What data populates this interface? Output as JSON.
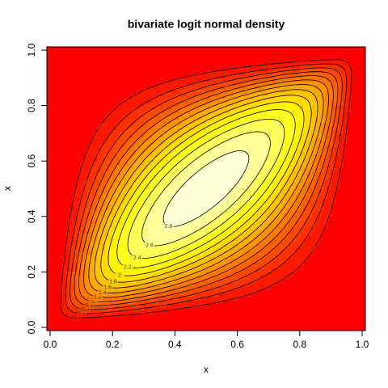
{
  "chart_data": {
    "type": "contour",
    "title": "bivariate logit normal density",
    "x_label": "x",
    "y_label": "x",
    "levels": [
      0.2,
      0.4,
      0.6,
      0.8,
      1,
      1.2,
      1.4,
      1.6,
      1.8,
      2,
      2.2,
      2.4,
      2.6,
      2.8
    ],
    "xlim": [
      0,
      1
    ],
    "ylim": [
      0,
      1
    ],
    "xticks": [
      {
        "value": 0,
        "label": "0.0"
      },
      0.2,
      0.4,
      0.6,
      0.8,
      {
        "value": 1,
        "label": "1.0"
      }
    ],
    "yticks": [
      {
        "value": 0,
        "label": "0.0"
      },
      0.2,
      0.4,
      0.6,
      0.8,
      {
        "value": 1,
        "label": "1.0"
      }
    ],
    "color": "#000000"
  }
}
